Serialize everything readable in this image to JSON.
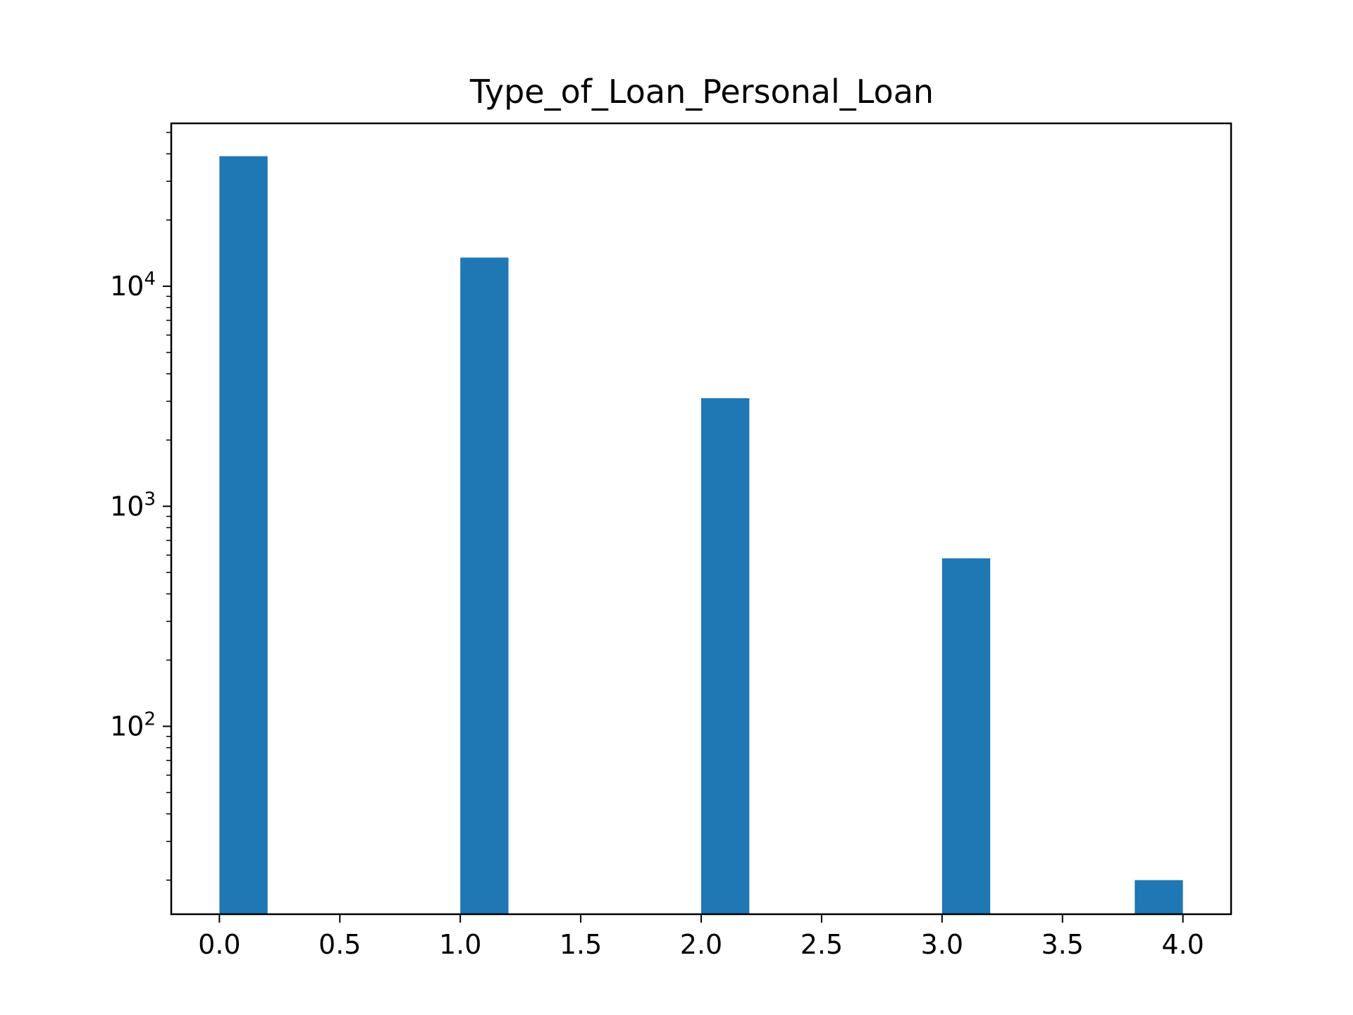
{
  "chart_data": {
    "type": "bar",
    "title": "Type_of_Loan_Personal_Loan",
    "xlabel": "",
    "ylabel": "",
    "y_scale": "log",
    "bar_color": "#1f77b4",
    "bin_width": 0.2,
    "bars": [
      {
        "x_start": 0.0,
        "x_end": 0.2,
        "value": 39000
      },
      {
        "x_start": 1.0,
        "x_end": 1.2,
        "value": 13500
      },
      {
        "x_start": 2.0,
        "x_end": 2.2,
        "value": 3100
      },
      {
        "x_start": 3.0,
        "x_end": 3.2,
        "value": 580
      },
      {
        "x_start": 3.8,
        "x_end": 4.0,
        "value": 20
      }
    ],
    "xlim": [
      -0.2,
      4.2
    ],
    "ylim": [
      14,
      55000
    ],
    "x_ticks": [
      {
        "value": 0.0,
        "label": "0.0"
      },
      {
        "value": 0.5,
        "label": "0.5"
      },
      {
        "value": 1.0,
        "label": "1.0"
      },
      {
        "value": 1.5,
        "label": "1.5"
      },
      {
        "value": 2.0,
        "label": "2.0"
      },
      {
        "value": 2.5,
        "label": "2.5"
      },
      {
        "value": 3.0,
        "label": "3.0"
      },
      {
        "value": 3.5,
        "label": "3.5"
      },
      {
        "value": 4.0,
        "label": "4.0"
      }
    ],
    "y_ticks": [
      {
        "value": 100,
        "base": "10",
        "exp": "2"
      },
      {
        "value": 1000,
        "base": "10",
        "exp": "3"
      },
      {
        "value": 10000,
        "base": "10",
        "exp": "4"
      }
    ],
    "grid": false,
    "legend": "none"
  }
}
